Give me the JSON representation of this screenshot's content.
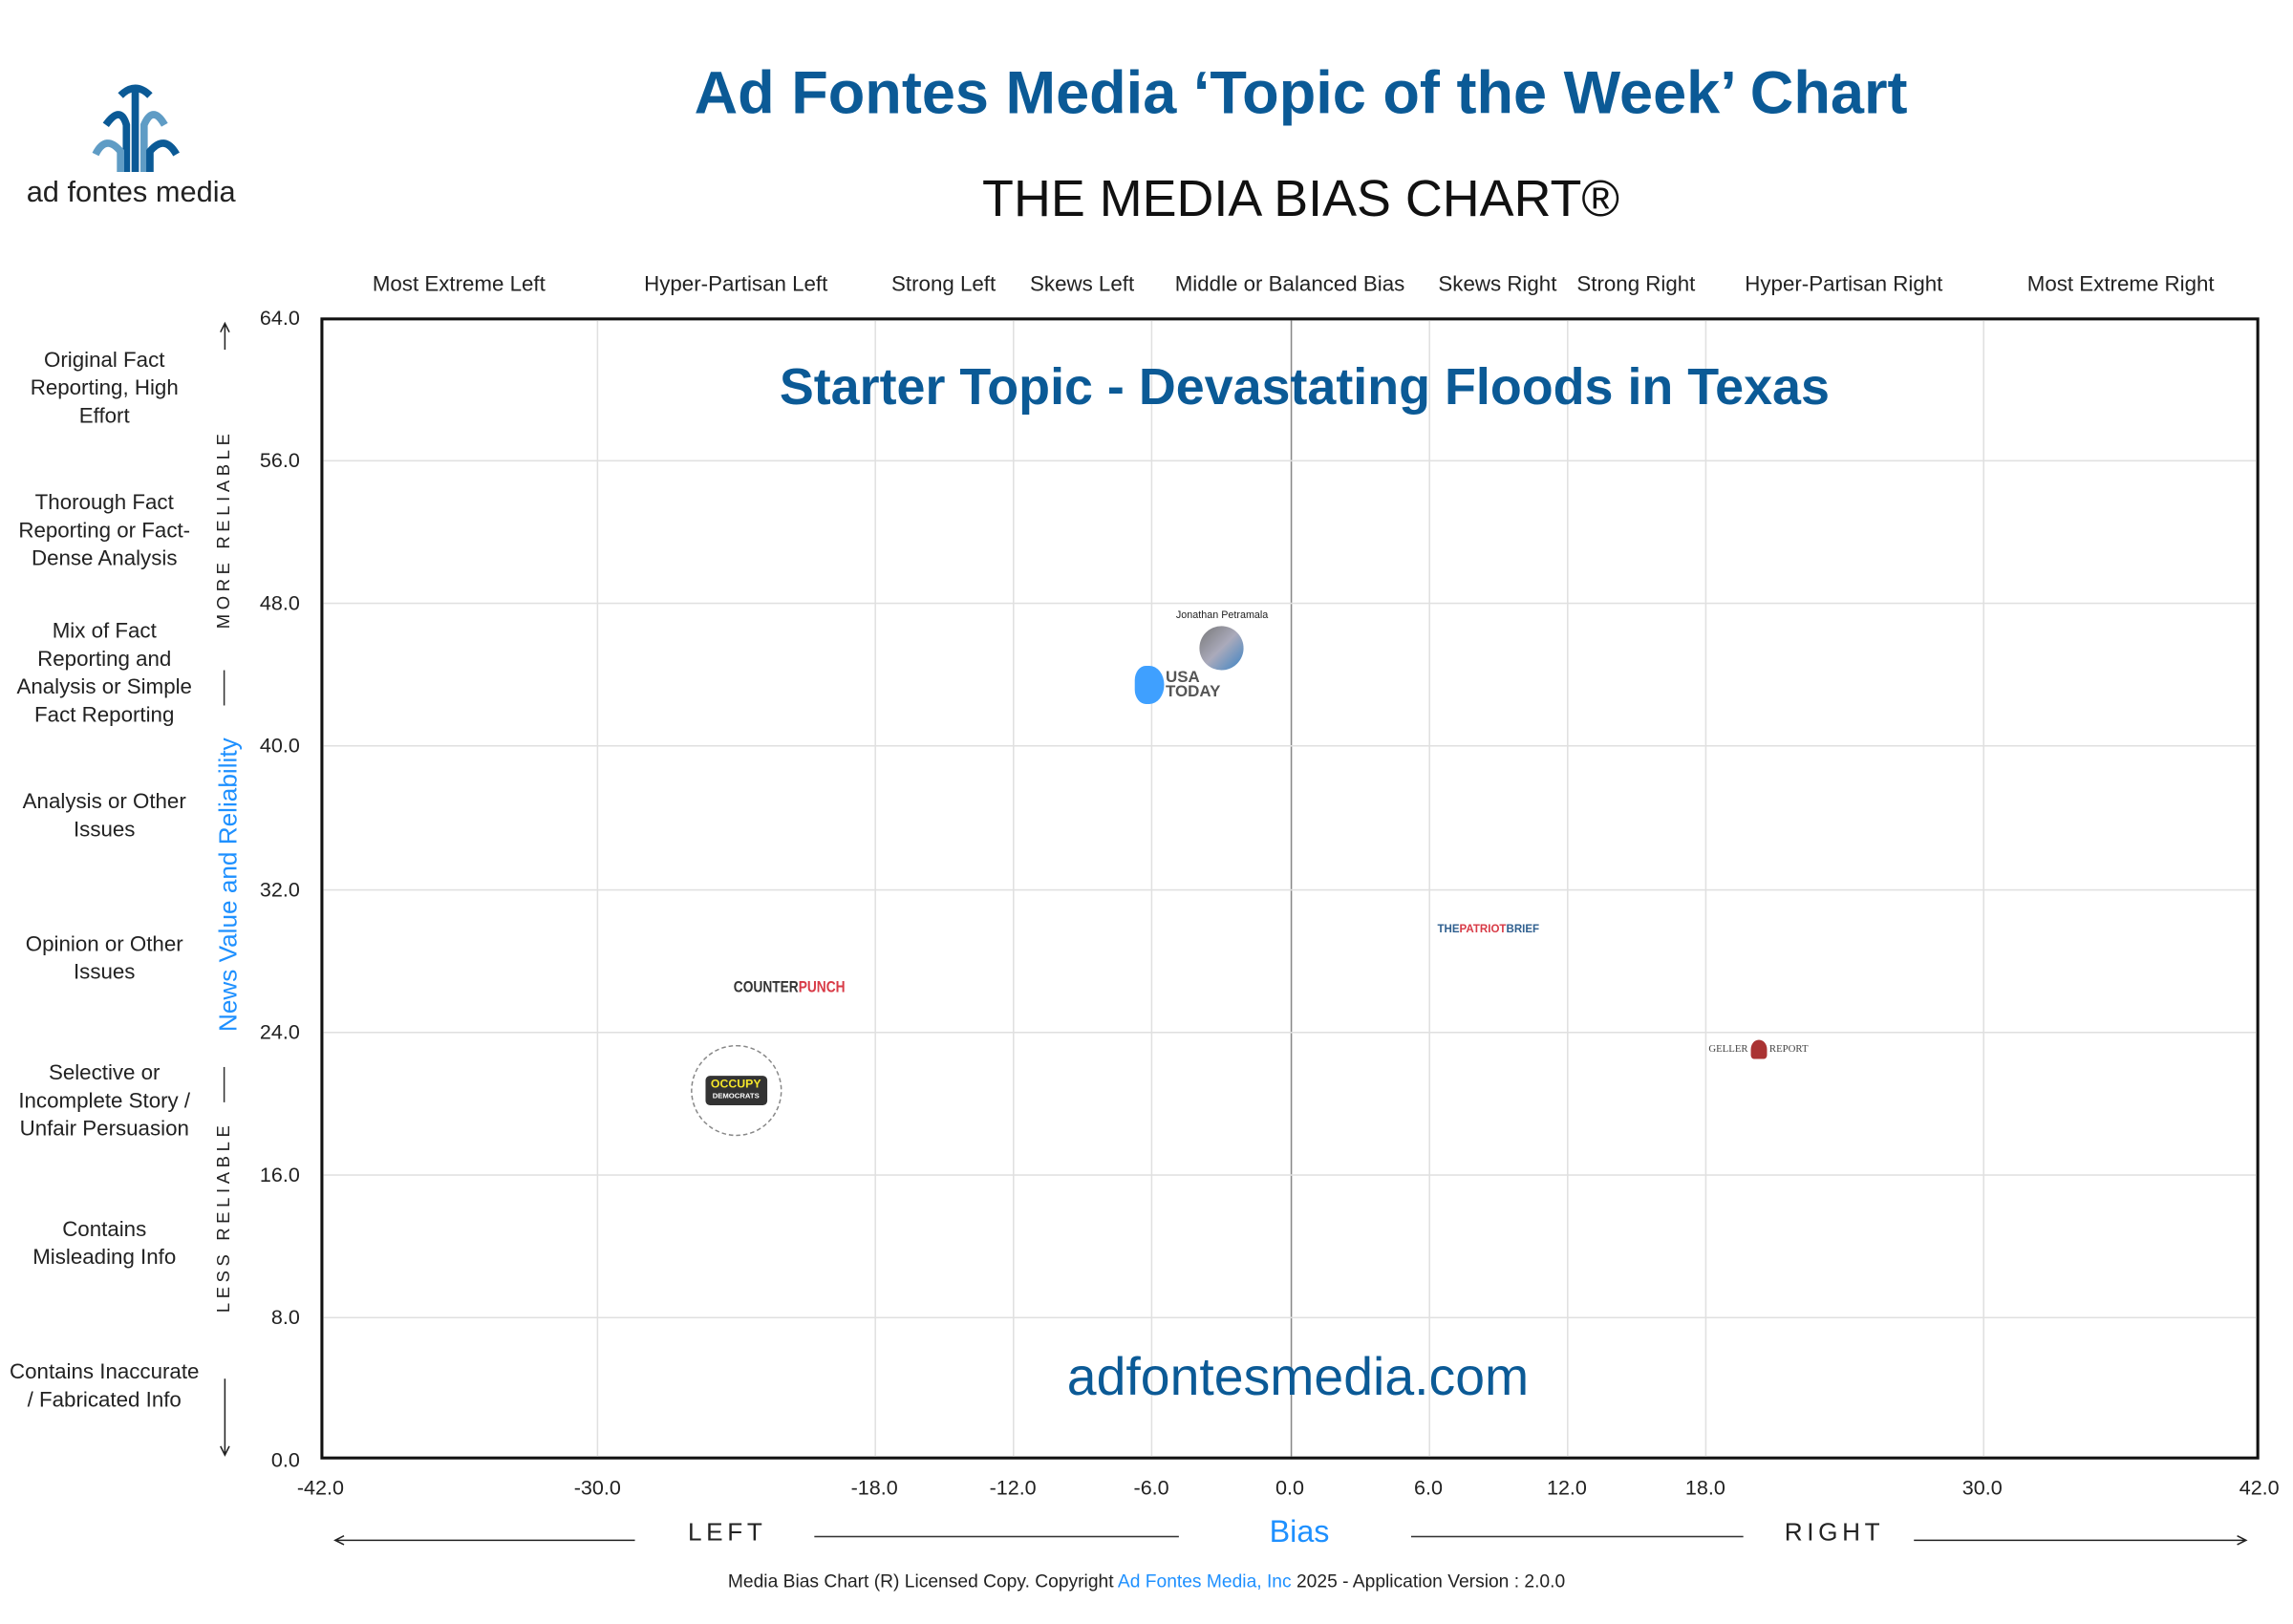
{
  "brand": {
    "logo_text": "ad fontes media",
    "primary_color": "#0b5a96",
    "light_color": "#5f9cc5"
  },
  "header": {
    "title": "Ad Fontes Media ‘Topic of the Week’ Chart",
    "subtitle": "THE MEDIA BIAS CHART®"
  },
  "footer": {
    "prefix": "Media Bias Chart (R) Licensed Copy. Copyright",
    "link": "Ad Fontes Media, Inc",
    "suffix": "2025  - Application Version : 2.0.0"
  },
  "chart_data": {
    "type": "scatter",
    "title": "Starter Topic - Devastating Floods in Texas",
    "watermark": "adfontesmedia.com",
    "xlabel": "Bias",
    "ylabel": "News Value and Reliability",
    "x_left_label": "LEFT",
    "x_right_label": "RIGHT",
    "y_top_label": "MORE RELIABLE",
    "y_bottom_label": "LESS RELIABLE",
    "xlim": [
      -42,
      42
    ],
    "ylim": [
      0,
      64
    ],
    "x_ticks": [
      "-42.0",
      "-30.0",
      "-18.0",
      "-12.0",
      "-6.0",
      "0.0",
      "6.0",
      "12.0",
      "18.0",
      "30.0",
      "42.0"
    ],
    "x_tick_values": [
      -42,
      -30,
      -18,
      -12,
      -6,
      0,
      6,
      12,
      18,
      30,
      42
    ],
    "y_ticks": [
      "0.0",
      "8.0",
      "16.0",
      "24.0",
      "32.0",
      "40.0",
      "48.0",
      "56.0",
      "64.0"
    ],
    "y_tick_values": [
      0,
      8,
      16,
      24,
      32,
      40,
      48,
      56,
      64
    ],
    "grid": true,
    "bias_categories": [
      {
        "label": "Most Extreme Left",
        "range": [
          -42,
          -30
        ]
      },
      {
        "label": "Hyper-Partisan Left",
        "range": [
          -30,
          -18
        ]
      },
      {
        "label": "Strong Left",
        "range": [
          -18,
          -12
        ]
      },
      {
        "label": "Skews Left",
        "range": [
          -12,
          -6
        ]
      },
      {
        "label": "Middle or Balanced Bias",
        "range": [
          -6,
          6
        ]
      },
      {
        "label": "Skews Right",
        "range": [
          6,
          12
        ]
      },
      {
        "label": "Strong Right",
        "range": [
          12,
          18
        ]
      },
      {
        "label": "Hyper-Partisan Right",
        "range": [
          18,
          30
        ]
      },
      {
        "label": "Most Extreme Right",
        "range": [
          30,
          42
        ]
      }
    ],
    "reliability_categories": [
      {
        "label": "Original Fact Reporting, High Effort",
        "range": [
          56,
          64
        ]
      },
      {
        "label": "Thorough Fact Reporting or Fact-Dense Analysis",
        "range": [
          48,
          56
        ]
      },
      {
        "label": "Mix of Fact Reporting and Analysis or Simple Fact Reporting",
        "range": [
          40,
          48
        ]
      },
      {
        "label": "Analysis or Other Issues",
        "range": [
          32,
          40
        ]
      },
      {
        "label": "Opinion or Other Issues",
        "range": [
          24,
          32
        ]
      },
      {
        "label": "Selective or Incomplete Story / Unfair Persuasion",
        "range": [
          16,
          24
        ]
      },
      {
        "label": "Contains Misleading Info",
        "range": [
          8,
          16
        ]
      },
      {
        "label": "Contains Inaccurate / Fabricated Info",
        "range": [
          0,
          8
        ]
      }
    ],
    "points": [
      {
        "name": "Blue marker",
        "kind": "blob",
        "x": -6.1,
        "y": 43.4
      },
      {
        "name": "USA TODAY",
        "kind": "usatoday",
        "x": -4.3,
        "y": 43.4
      },
      {
        "name": "Jonathan Petramala",
        "kind": "person",
        "x": -3.7,
        "y": 45.0
      },
      {
        "name": "THEPATRIOTBRIEF",
        "kind": "patriot",
        "x": 8.6,
        "y": 29.7
      },
      {
        "name": "GELLER REPORT",
        "kind": "geller",
        "x": 20.3,
        "y": 23.0
      },
      {
        "name": "COUNTERPUNCH",
        "kind": "counterpunch",
        "x": -21.7,
        "y": 26.4
      },
      {
        "name": "OCCUPY DEMOCRATS",
        "kind": "occupy",
        "x": -24.0,
        "y": 20.7
      }
    ]
  }
}
